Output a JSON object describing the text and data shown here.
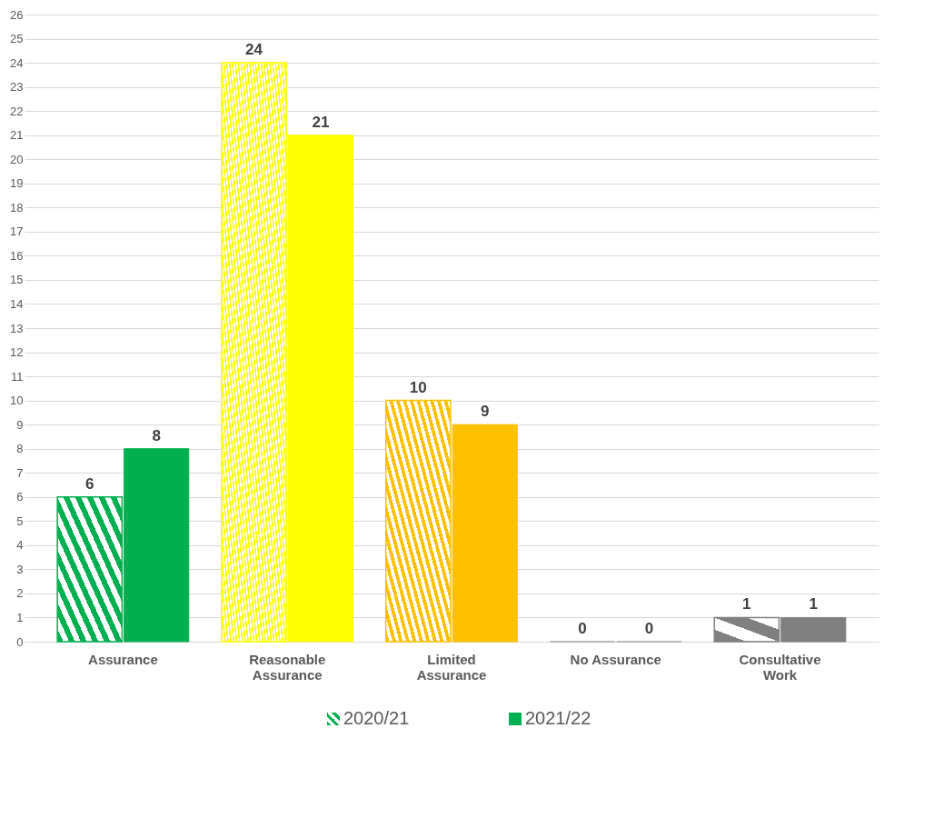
{
  "chart_data": {
    "type": "bar",
    "categories": [
      "Assurance",
      "Reasonable Assurance",
      "Limited Assurance",
      "No Assurance",
      "Consultative Work"
    ],
    "series": [
      {
        "name": "2020/21",
        "colors": [
          "#00b050",
          "#ffff00",
          "#ffc000",
          "#a6a6a6",
          "#808080"
        ],
        "values": [
          6,
          24,
          10,
          0,
          1
        ]
      },
      {
        "name": "2021/22",
        "colors": [
          "#00b050",
          "#ffff00",
          "#ffc000",
          "#a6a6a6",
          "#808080"
        ],
        "values": [
          8,
          21,
          9,
          0,
          1
        ]
      }
    ],
    "ylim": [
      0,
      26
    ],
    "yticks": [
      0,
      1,
      2,
      3,
      4,
      5,
      6,
      7,
      8,
      9,
      10,
      11,
      12,
      13,
      14,
      15,
      16,
      17,
      18,
      19,
      20,
      21,
      22,
      23,
      24,
      25,
      26
    ],
    "grid": "y",
    "data_labels": true,
    "legend": "bottom"
  }
}
